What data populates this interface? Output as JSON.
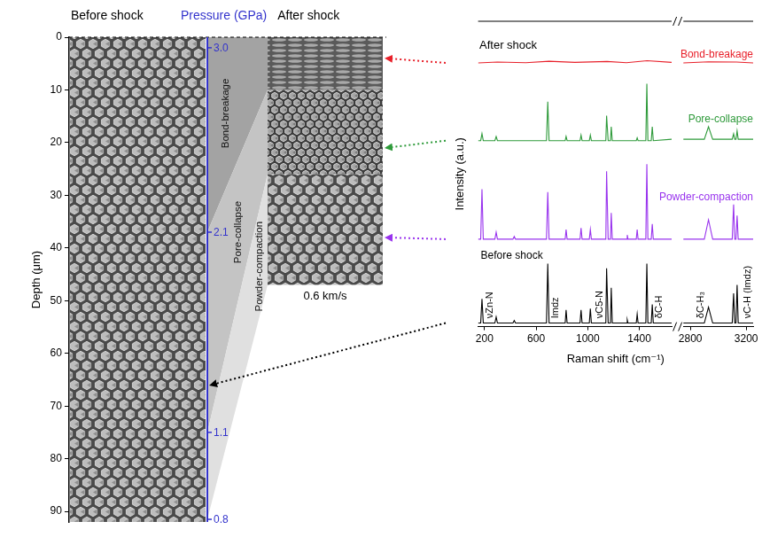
{
  "chart_data": [
    {
      "type": "depth_profile",
      "ylabel": "Depth (μm)",
      "ylim": [
        0,
        92
      ],
      "yticks": [
        0,
        10,
        20,
        30,
        40,
        50,
        60,
        70,
        80,
        90
      ],
      "images": [
        {
          "label": "Before shock"
        },
        {
          "label": "After shock",
          "caption": "0.6 km/s"
        }
      ],
      "pressure_axis": {
        "title": "Pressure (GPa)",
        "color": "#3333cc",
        "ticks": [
          {
            "value": 2,
            "label": "3.0"
          },
          {
            "value": 37,
            "label": "2.1"
          },
          {
            "value": 75,
            "label": "1.1"
          },
          {
            "value": 91.5,
            "label": "0.8"
          }
        ]
      },
      "zones": [
        {
          "label": "Bond-breakage",
          "depth_before": [
            0,
            37
          ],
          "depth_after": [
            0,
            10
          ]
        },
        {
          "label": "Pore-collapse",
          "depth_before": [
            37,
            75
          ],
          "depth_after": [
            10,
            26
          ]
        },
        {
          "label": "Powder-compaction",
          "depth_before": [
            75,
            91.5
          ],
          "depth_after": [
            26,
            47
          ]
        }
      ]
    },
    {
      "type": "line",
      "xlabel": "Raman shift (cm⁻¹)",
      "ylabel": "Intensity (a.u.)",
      "ylim": [
        0,
        110
      ],
      "tick_labels": "x",
      "segments": [
        {
          "xlim": [
            150,
            1650
          ],
          "xticks": [
            200,
            600,
            1000,
            1400
          ]
        },
        {
          "xlim": [
            2750,
            3250
          ],
          "xticks": [
            2800,
            3200
          ]
        }
      ],
      "series": [
        {
          "name": "Bond-breakage",
          "color": "#e8202a",
          "depth": 4,
          "values": [
            [
              150,
              95
            ],
            [
              300,
              95.3
            ],
            [
              520,
              95.1
            ],
            [
              700,
              95.6
            ],
            [
              900,
              95.2
            ],
            [
              1150,
              95.5
            ],
            [
              1300,
              95.1
            ],
            [
              1460,
              95.8
            ],
            [
              1650,
              95.2
            ],
            [
              2750,
              95
            ],
            [
              2930,
              95.4
            ],
            [
              3130,
              95.3
            ],
            [
              3250,
              95
            ]
          ]
        },
        {
          "name": "Pore-collapse",
          "color": "#2e9a3a",
          "depth": 21,
          "values": [
            [
              150,
              67
            ],
            [
              170,
              67
            ],
            [
              180,
              69.5
            ],
            [
              190,
              67
            ],
            [
              280,
              67
            ],
            [
              290,
              68.5
            ],
            [
              300,
              67
            ],
            [
              680,
              67
            ],
            [
              690,
              81
            ],
            [
              700,
              67
            ],
            [
              825,
              67
            ],
            [
              832,
              68.5
            ],
            [
              840,
              67
            ],
            [
              940,
              67
            ],
            [
              948,
              69
            ],
            [
              956,
              67
            ],
            [
              1012,
              67
            ],
            [
              1020,
              69
            ],
            [
              1028,
              67
            ],
            [
              1140,
              67
            ],
            [
              1146,
              76
            ],
            [
              1158,
              67
            ],
            [
              1176,
              67
            ],
            [
              1182,
              72
            ],
            [
              1190,
              67
            ],
            [
              1376,
              67
            ],
            [
              1383,
              68
            ],
            [
              1390,
              67
            ],
            [
              1450,
              67
            ],
            [
              1458,
              87.5
            ],
            [
              1466,
              67
            ],
            [
              1492,
              67
            ],
            [
              1500,
              72
            ],
            [
              1508,
              67
            ],
            [
              1650,
              67.5
            ],
            [
              2750,
              67.5
            ],
            [
              2900,
              67.5
            ],
            [
              2930,
              72
            ],
            [
              2960,
              67.5
            ],
            [
              3100,
              67.5
            ],
            [
              3110,
              69.5
            ],
            [
              3118,
              67.5
            ],
            [
              3127,
              67.5
            ],
            [
              3135,
              70.5
            ],
            [
              3143,
              67.5
            ],
            [
              3250,
              67.5
            ]
          ]
        },
        {
          "name": "Powder-compaction",
          "color": "#9933ee",
          "depth": 38,
          "values": [
            [
              150,
              31.5
            ],
            [
              170,
              31.5
            ],
            [
              180,
              49.5
            ],
            [
              190,
              31.5
            ],
            [
              280,
              31.5
            ],
            [
              290,
              34
            ],
            [
              300,
              31.5
            ],
            [
              420,
              31.5
            ],
            [
              430,
              32.5
            ],
            [
              440,
              31.5
            ],
            [
              680,
              31.5
            ],
            [
              690,
              48.5
            ],
            [
              700,
              31.5
            ],
            [
              825,
              31.5
            ],
            [
              832,
              35
            ],
            [
              840,
              31.5
            ],
            [
              940,
              31.5
            ],
            [
              948,
              35.5
            ],
            [
              956,
              31.5
            ],
            [
              1012,
              31.5
            ],
            [
              1020,
              35
            ],
            [
              1028,
              31.5
            ],
            [
              1140,
              31.5
            ],
            [
              1146,
              56
            ],
            [
              1158,
              31.5
            ],
            [
              1176,
              31.5
            ],
            [
              1182,
              41
            ],
            [
              1190,
              31.5
            ],
            [
              1300,
              31.5
            ],
            [
              1306,
              33
            ],
            [
              1312,
              31.5
            ],
            [
              1376,
              31.5
            ],
            [
              1383,
              35
            ],
            [
              1390,
              31.5
            ],
            [
              1450,
              31.5
            ],
            [
              1458,
              58.5
            ],
            [
              1466,
              31.5
            ],
            [
              1492,
              31.5
            ],
            [
              1500,
              37
            ],
            [
              1508,
              31.5
            ],
            [
              1650,
              31.5
            ],
            [
              2750,
              31.5
            ],
            [
              2900,
              31.5
            ],
            [
              2930,
              38.5
            ],
            [
              2960,
              31.5
            ],
            [
              3100,
              31.5
            ],
            [
              3110,
              44
            ],
            [
              3118,
              31.5
            ],
            [
              3127,
              31.5
            ],
            [
              3135,
              40
            ],
            [
              3143,
              31.5
            ],
            [
              3250,
              31.5
            ]
          ]
        },
        {
          "name": "Before shock",
          "color": "#000000",
          "depth": 66,
          "values": [
            [
              150,
              1.3
            ],
            [
              170,
              1.3
            ],
            [
              180,
              10
            ],
            [
              190,
              1.3
            ],
            [
              280,
              1.3
            ],
            [
              290,
              3.5
            ],
            [
              300,
              1.3
            ],
            [
              420,
              1.3
            ],
            [
              430,
              2.2
            ],
            [
              440,
              1.3
            ],
            [
              680,
              1.3
            ],
            [
              690,
              22.7
            ],
            [
              700,
              1.3
            ],
            [
              825,
              1.3
            ],
            [
              832,
              6
            ],
            [
              840,
              1.3
            ],
            [
              940,
              1.3
            ],
            [
              948,
              6
            ],
            [
              956,
              1.3
            ],
            [
              1012,
              1.3
            ],
            [
              1020,
              6.5
            ],
            [
              1028,
              1.3
            ],
            [
              1140,
              1.3
            ],
            [
              1146,
              21
            ],
            [
              1158,
              1.3
            ],
            [
              1176,
              1.3
            ],
            [
              1182,
              14
            ],
            [
              1190,
              1.3
            ],
            [
              1300,
              1.3
            ],
            [
              1306,
              2.5
            ],
            [
              1312,
              1.3
            ],
            [
              1376,
              1.3
            ],
            [
              1383,
              4.5
            ],
            [
              1390,
              1.3
            ],
            [
              1450,
              1.3
            ],
            [
              1458,
              22.7
            ],
            [
              1466,
              1.3
            ],
            [
              1492,
              1.3
            ],
            [
              1500,
              8
            ],
            [
              1508,
              1.3
            ],
            [
              1650,
              1.3
            ],
            [
              2750,
              1.3
            ],
            [
              2900,
              1.3
            ],
            [
              2930,
              7
            ],
            [
              2960,
              1.3
            ],
            [
              3100,
              1.3
            ],
            [
              3110,
              12
            ],
            [
              3118,
              1.3
            ],
            [
              3127,
              1.3
            ],
            [
              3135,
              15
            ],
            [
              3143,
              1.3
            ],
            [
              3250,
              1.3
            ]
          ]
        }
      ],
      "annotations": [
        {
          "text": "After shock",
          "x": 160,
          "y": 100
        }
      ],
      "peak_labels": [
        {
          "text": "νZn-N",
          "x": 235,
          "y": 3
        },
        {
          "text": "Imdz",
          "x": 745,
          "y": 3
        },
        {
          "text": "νC5-N",
          "x": 1090,
          "y": 3
        },
        {
          "text": "δC-H",
          "x": 1550,
          "y": 3
        },
        {
          "text": "δC-H₃",
          "x": 2870,
          "y": 3
        },
        {
          "text": "νC-H (Imdz)",
          "x": 3205,
          "y": 3
        }
      ]
    }
  ]
}
